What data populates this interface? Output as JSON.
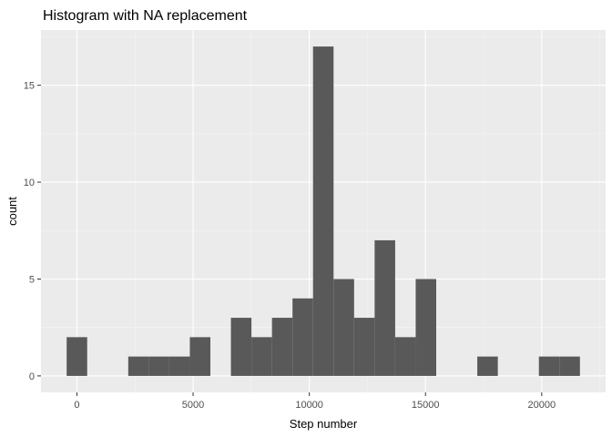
{
  "chart_data": {
    "type": "bar",
    "title": "Histogram with NA replacement",
    "xlabel": "Step number",
    "ylabel": "count",
    "bin_width": 883.5,
    "bins": [
      {
        "start": -441.75,
        "end": 441.75,
        "count": 2
      },
      {
        "start": 2208.75,
        "end": 3092.25,
        "count": 1
      },
      {
        "start": 3092.25,
        "end": 3975.75,
        "count": 1
      },
      {
        "start": 3975.75,
        "end": 4859.25,
        "count": 1
      },
      {
        "start": 4859.25,
        "end": 5742.75,
        "count": 2
      },
      {
        "start": 6626.25,
        "end": 7509.75,
        "count": 3
      },
      {
        "start": 7509.75,
        "end": 8393.25,
        "count": 2
      },
      {
        "start": 8393.25,
        "end": 9276.75,
        "count": 3
      },
      {
        "start": 9276.75,
        "end": 10160.25,
        "count": 4
      },
      {
        "start": 10160.25,
        "end": 11043.75,
        "count": 17
      },
      {
        "start": 11043.75,
        "end": 11927.25,
        "count": 5
      },
      {
        "start": 11927.25,
        "end": 12810.75,
        "count": 3
      },
      {
        "start": 12810.75,
        "end": 13694.25,
        "count": 7
      },
      {
        "start": 13694.25,
        "end": 14577.75,
        "count": 2
      },
      {
        "start": 14577.75,
        "end": 15461.25,
        "count": 5
      },
      {
        "start": 17228.25,
        "end": 18111.75,
        "count": 1
      },
      {
        "start": 19878.75,
        "end": 20762.25,
        "count": 1
      },
      {
        "start": 20762.25,
        "end": 21645.75,
        "count": 1
      }
    ],
    "xlim": [
      -1546.125,
      22750.125
    ],
    "ylim": [
      -0.85,
      17.85
    ],
    "x_ticks": [
      0,
      5000,
      10000,
      15000,
      20000
    ],
    "x_tick_labels": [
      "0",
      "5000",
      "10000",
      "15000",
      "20000"
    ],
    "y_ticks": [
      0,
      5,
      10,
      15
    ],
    "y_tick_labels": [
      "0",
      "5",
      "10",
      "15"
    ],
    "grid": true,
    "colors": {
      "bar": "#595959",
      "panel": "#ebebeb",
      "grid_major": "#ffffff",
      "grid_minor": "#f5f5f5"
    }
  }
}
